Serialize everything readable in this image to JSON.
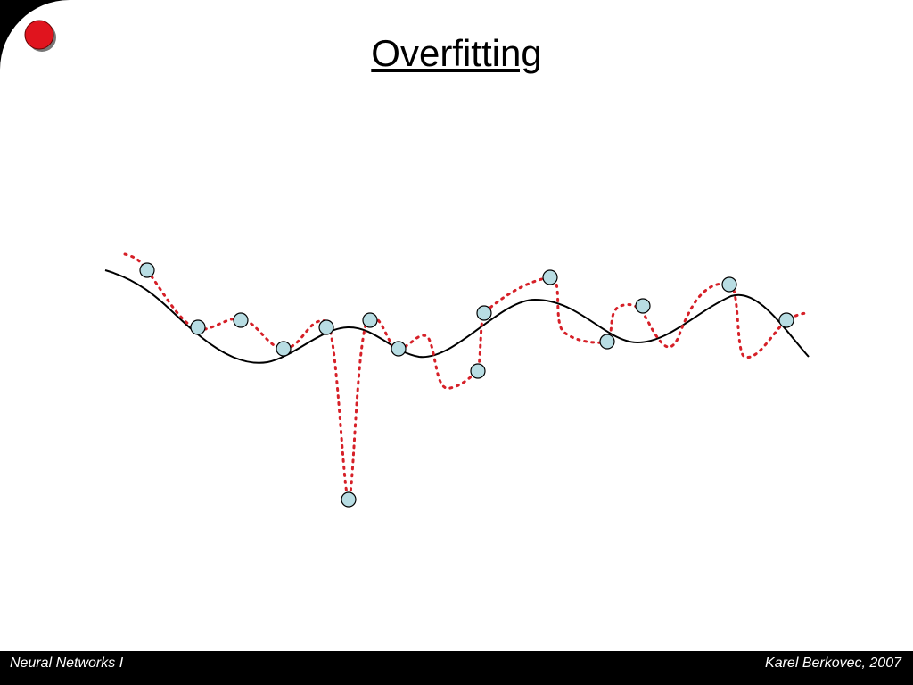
{
  "title": "Overfitting",
  "footer": {
    "left": "Neural Networks I",
    "right": "Karel Berkovec, 2007"
  }
}
